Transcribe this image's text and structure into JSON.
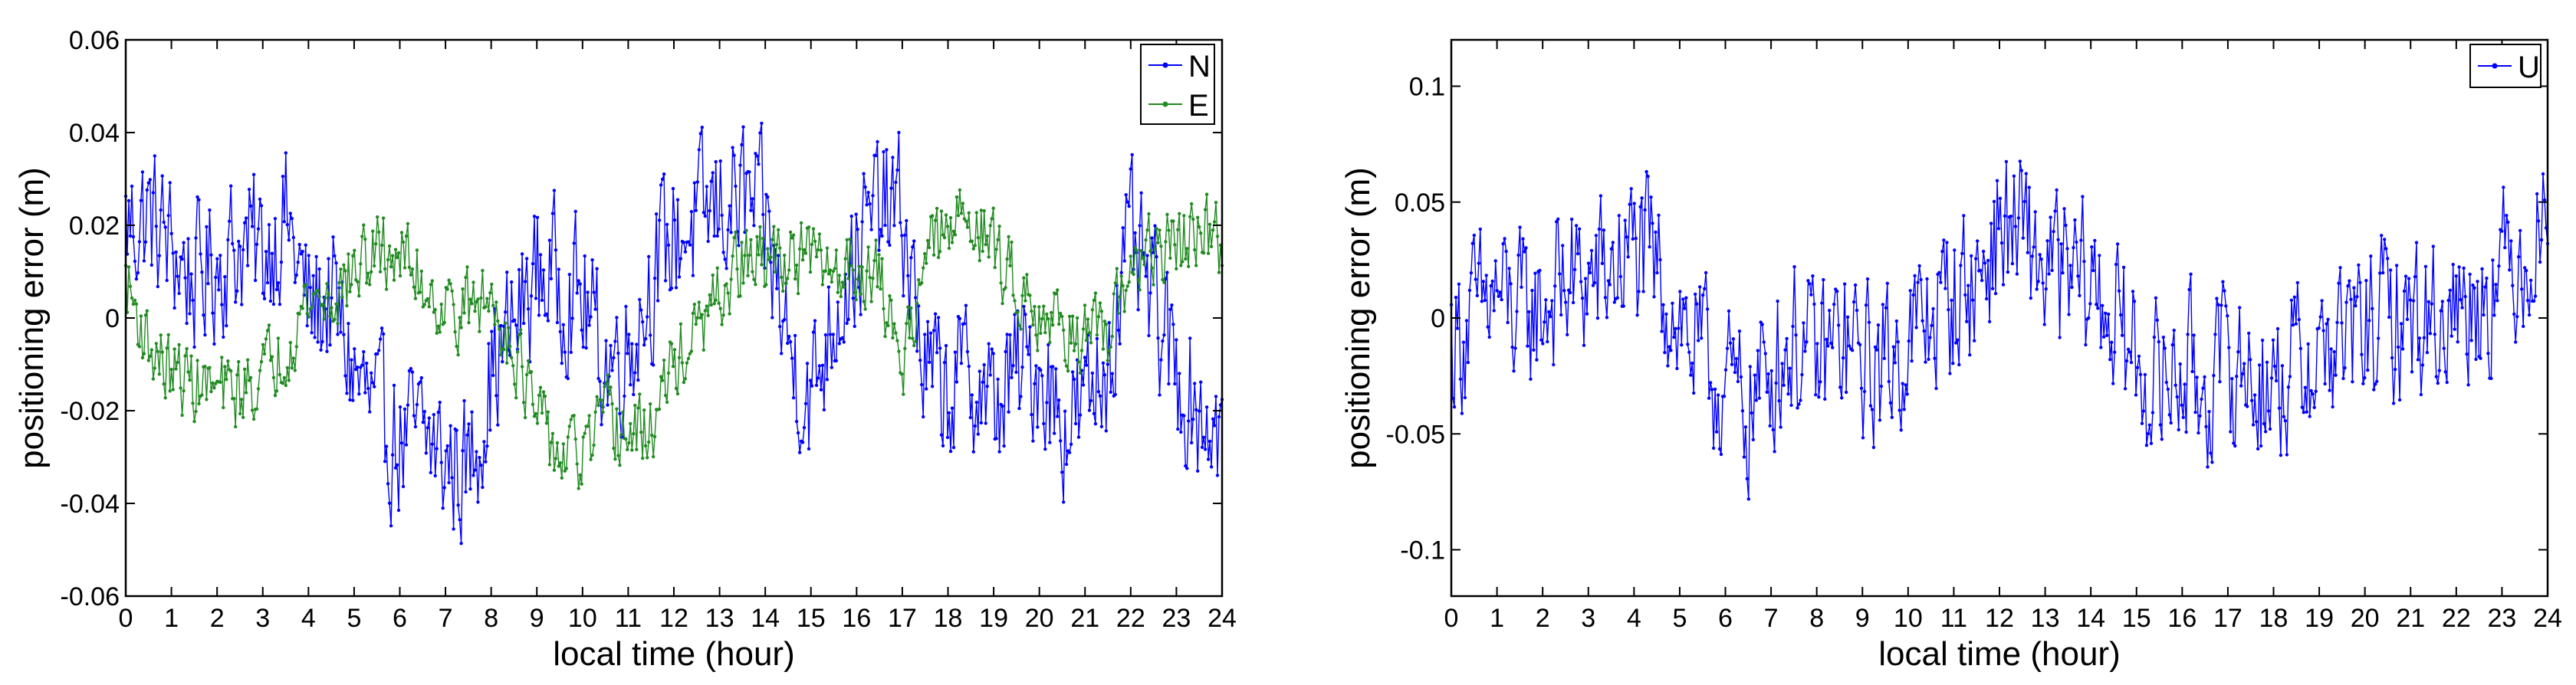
{
  "chart_data": [
    {
      "type": "line",
      "title": "",
      "xlabel": "local time (hour)",
      "ylabel": "positioning error (m)",
      "xlim": [
        0,
        24
      ],
      "ylim": [
        -0.06,
        0.06
      ],
      "x_ticks": [
        0,
        1,
        2,
        3,
        4,
        5,
        6,
        7,
        8,
        9,
        10,
        11,
        12,
        13,
        14,
        15,
        16,
        17,
        18,
        19,
        20,
        21,
        22,
        23,
        24
      ],
      "x_tick_labels": [
        "0",
        "1",
        "2",
        "3",
        "4",
        "5",
        "6",
        "7",
        "8",
        "9",
        "10",
        "11",
        "12",
        "13",
        "14",
        "15",
        "16",
        "17",
        "18",
        "19",
        "20",
        "21",
        "22",
        "23",
        "24"
      ],
      "y_ticks": [
        0.06,
        0.04,
        0.02,
        0,
        -0.02,
        -0.04,
        -0.06
      ],
      "y_tick_labels": [
        "0.06",
        "0.04",
        "0.02",
        "0",
        "-0.02",
        "-0.04",
        "-0.06"
      ],
      "legend": {
        "position": "top-right",
        "entries": [
          "N",
          "E"
        ]
      },
      "grid": false,
      "points_per_series": 720,
      "series": [
        {
          "name": "N",
          "color": "#0000ff",
          "x": [
            0,
            0.5,
            1,
            1.5,
            2,
            2.5,
            3,
            3.5,
            4,
            4.5,
            5,
            5.5,
            6,
            6.5,
            7,
            7.5,
            8,
            8.5,
            9,
            9.5,
            10,
            10.5,
            11,
            11.5,
            12,
            12.5,
            13,
            13.5,
            14,
            14.5,
            15,
            15.5,
            16,
            16.5,
            17,
            17.5,
            18,
            18.5,
            19,
            19.5,
            20,
            20.5,
            21,
            21.5,
            22,
            22.5,
            23,
            23.5,
            24
          ],
          "values": [
            0.02,
            0.022,
            0.015,
            0.008,
            0.012,
            0.016,
            0.014,
            0.022,
            0.002,
            0.004,
            -0.012,
            -0.022,
            -0.027,
            -0.025,
            -0.031,
            -0.033,
            -0.012,
            -0.002,
            0.01,
            0.008,
            0.004,
            -0.01,
            -0.006,
            0.008,
            0.018,
            0.02,
            0.024,
            0.026,
            0.02,
            -0.006,
            -0.018,
            0.002,
            0.014,
            0.024,
            0.022,
            -0.012,
            -0.016,
            -0.012,
            -0.02,
            -0.012,
            -0.01,
            -0.022,
            -0.02,
            -0.008,
            0.016,
            0.002,
            -0.012,
            -0.02,
            -0.024
          ],
          "noise": 0.014
        },
        {
          "name": "E",
          "color": "#228b22",
          "x": [
            0,
            0.5,
            1,
            1.5,
            2,
            2.5,
            3,
            3.5,
            4,
            4.5,
            5,
            5.5,
            6,
            6.5,
            7,
            7.5,
            8,
            8.5,
            9,
            9.5,
            10,
            10.5,
            11,
            11.5,
            12,
            12.5,
            13,
            13.5,
            14,
            14.5,
            15,
            15.5,
            16,
            16.5,
            17,
            17.5,
            18,
            18.5,
            19,
            19.5,
            20,
            20.5,
            21,
            21.5,
            22,
            22.5,
            23,
            23.5,
            24
          ],
          "values": [
            0.008,
            -0.006,
            -0.012,
            -0.014,
            -0.016,
            -0.016,
            -0.012,
            -0.006,
            0.004,
            0.004,
            0.01,
            0.014,
            0.014,
            0.008,
            0.002,
            0.002,
            0.004,
            -0.006,
            -0.022,
            -0.03,
            -0.03,
            -0.022,
            -0.026,
            -0.024,
            -0.01,
            -0.004,
            0.004,
            0.012,
            0.012,
            0.014,
            0.012,
            0.01,
            0.012,
            0.008,
            -0.01,
            0.014,
            0.018,
            0.024,
            0.014,
            0.008,
            0.002,
            -0.002,
            -0.004,
            -0.006,
            0.012,
            0.014,
            0.016,
            0.018,
            0.016
          ],
          "noise": 0.007
        }
      ]
    },
    {
      "type": "line",
      "title": "",
      "xlabel": "local time (hour)",
      "ylabel": "positioning error (m)",
      "xlim": [
        0,
        24
      ],
      "ylim": [
        -0.12,
        0.12
      ],
      "x_ticks": [
        0,
        1,
        2,
        3,
        4,
        5,
        6,
        7,
        8,
        9,
        10,
        11,
        12,
        13,
        14,
        15,
        16,
        17,
        18,
        19,
        20,
        21,
        22,
        23,
        24
      ],
      "x_tick_labels": [
        "0",
        "1",
        "2",
        "3",
        "4",
        "5",
        "6",
        "7",
        "8",
        "9",
        "10",
        "11",
        "12",
        "13",
        "14",
        "15",
        "16",
        "17",
        "18",
        "19",
        "20",
        "21",
        "22",
        "23",
        "24"
      ],
      "y_ticks": [
        0.1,
        0.05,
        0,
        -0.05,
        -0.1
      ],
      "y_tick_labels": [
        "0.1",
        "0.05",
        "0",
        "-0.05",
        "-0.1"
      ],
      "legend": {
        "position": "top-right",
        "entries": [
          "U"
        ]
      },
      "grid": false,
      "points_per_series": 720,
      "series": [
        {
          "name": "U",
          "color": "#0000ff",
          "x": [
            0,
            0.5,
            1,
            1.5,
            2,
            2.5,
            3,
            3.5,
            4,
            4.5,
            5,
            5.5,
            6,
            6.5,
            7,
            7.5,
            8,
            8.5,
            9,
            9.5,
            10,
            10.5,
            11,
            11.5,
            12,
            12.5,
            13,
            13.5,
            14,
            14.5,
            15,
            15.5,
            16,
            16.5,
            17,
            17.5,
            18,
            18.5,
            19,
            19.5,
            20,
            20.5,
            21,
            21.5,
            22,
            22.5,
            23,
            23.5,
            24
          ],
          "values": [
            -0.01,
            0.0,
            0.01,
            0.0,
            0.005,
            0.015,
            0.015,
            0.02,
            0.03,
            0.02,
            0.0,
            -0.02,
            -0.03,
            -0.04,
            -0.02,
            -0.01,
            -0.02,
            -0.01,
            -0.02,
            -0.02,
            -0.01,
            0.0,
            0.01,
            0.015,
            0.04,
            0.035,
            0.02,
            0.015,
            0.015,
            0.0,
            -0.02,
            -0.03,
            -0.02,
            -0.03,
            -0.02,
            -0.025,
            -0.03,
            -0.02,
            -0.015,
            -0.01,
            -0.005,
            0.0,
            0.0,
            0.0,
            0.005,
            0.01,
            0.02,
            0.03,
            0.04
          ],
          "noise": 0.03
        }
      ]
    }
  ]
}
